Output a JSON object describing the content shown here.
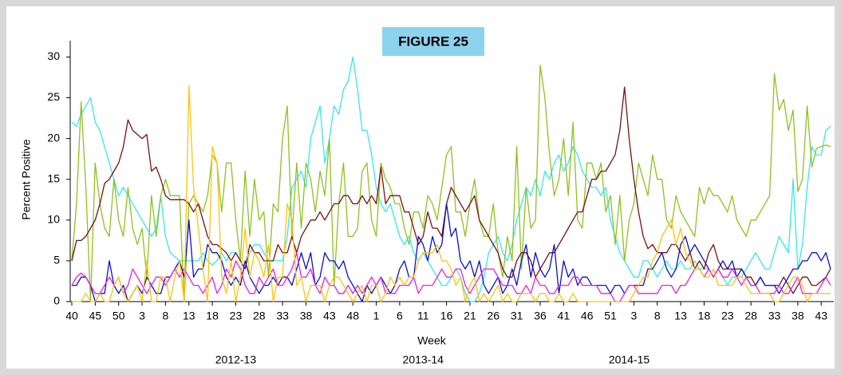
{
  "chart_data": {
    "type": "line",
    "title": "FIGURE 25",
    "x_label": "Week",
    "y_label": "Percent  Positive",
    "season_labels": [
      "2012-13",
      "2013-14",
      "2014-15"
    ],
    "categories": [
      "40",
      null,
      null,
      null,
      null,
      "45",
      null,
      null,
      null,
      null,
      "50",
      null,
      null,
      null,
      null,
      "3",
      null,
      null,
      null,
      null,
      "8",
      null,
      null,
      null,
      null,
      "13",
      null,
      null,
      null,
      null,
      "18",
      null,
      null,
      null,
      null,
      "23",
      null,
      null,
      null,
      null,
      "28",
      null,
      null,
      null,
      null,
      "33",
      null,
      null,
      null,
      null,
      "38",
      null,
      null,
      null,
      null,
      "43",
      null,
      null,
      null,
      null,
      "48",
      null,
      null,
      null,
      null,
      "1",
      null,
      null,
      null,
      null,
      "6",
      null,
      null,
      null,
      null,
      "11",
      null,
      null,
      null,
      null,
      "16",
      null,
      null,
      null,
      null,
      "21",
      null,
      null,
      null,
      null,
      "26",
      null,
      null,
      null,
      null,
      "31",
      null,
      null,
      null,
      null,
      "36",
      null,
      null,
      null,
      null,
      "41",
      null,
      null,
      null,
      null,
      "46",
      null,
      null,
      null,
      null,
      "51",
      null,
      null,
      null,
      null,
      "3",
      null,
      null,
      null,
      null,
      "8",
      null,
      null,
      null,
      null,
      "13",
      null,
      null,
      null,
      null,
      "18",
      null,
      null,
      null,
      null,
      "23",
      null,
      null,
      null,
      null,
      "28",
      null,
      null,
      null,
      null,
      "33",
      null,
      null,
      null,
      null,
      "38",
      null,
      null,
      null,
      null,
      "43",
      null,
      null
    ],
    "series": [
      {
        "color": "#33e8ee",
        "values": [
          22,
          21.5,
          23,
          24,
          25,
          22,
          21,
          19,
          17,
          15,
          13,
          14,
          13,
          12,
          11,
          10,
          9,
          8,
          9,
          13,
          8,
          6,
          5.5,
          5,
          5,
          5,
          5,
          5,
          6,
          5,
          4.5,
          5,
          6,
          5,
          6,
          6,
          5,
          4,
          6,
          7,
          7,
          6,
          5,
          5,
          5,
          5,
          8,
          14,
          15,
          16,
          14,
          20,
          22,
          24,
          17,
          20,
          24,
          23,
          26,
          27,
          30,
          26,
          21,
          21,
          18,
          14,
          12,
          11,
          12,
          10,
          8,
          7,
          8,
          6,
          5,
          6,
          5,
          4,
          3,
          2,
          2,
          3,
          4,
          3,
          1,
          0,
          0,
          1,
          3,
          6,
          7,
          8,
          6,
          5,
          7,
          10,
          12,
          14,
          13,
          15,
          13,
          16,
          15,
          17,
          18,
          16,
          17,
          19,
          18,
          16,
          15,
          14,
          14,
          13,
          14,
          10,
          8,
          6,
          5,
          4,
          3,
          3,
          5,
          5,
          4,
          3,
          4,
          5,
          4,
          4,
          5,
          4,
          4,
          5,
          4,
          4,
          4,
          3,
          4,
          3,
          2,
          3,
          3,
          3,
          4,
          5,
          6,
          5,
          4,
          4,
          6,
          8,
          7,
          6,
          15,
          4,
          7,
          14,
          19,
          18,
          18,
          21,
          21.5
        ]
      },
      {
        "color": "#8dc21f",
        "values": [
          5,
          12,
          24.5,
          14,
          0,
          17,
          12,
          9,
          8,
          15,
          10,
          8,
          14,
          9,
          7,
          9,
          3,
          13,
          8,
          13,
          15,
          13,
          13,
          13,
          0,
          12,
          13,
          12,
          11,
          13,
          18,
          17,
          11,
          17,
          17,
          10,
          5,
          16,
          8,
          15,
          10,
          11,
          3,
          12,
          11,
          20,
          24,
          8,
          17,
          9,
          17,
          15,
          11,
          16,
          13,
          20,
          2,
          12,
          17,
          8,
          8,
          9,
          16,
          17,
          10,
          8,
          17,
          15,
          14,
          12,
          12,
          9,
          7,
          11,
          11,
          9,
          13,
          12,
          10,
          14,
          18,
          19,
          11,
          11,
          8,
          12,
          15,
          10,
          8,
          8,
          12,
          6,
          3,
          8,
          5,
          19,
          4,
          14,
          9,
          10,
          29,
          25,
          18,
          13,
          15,
          20,
          13,
          22,
          10,
          9,
          17,
          17,
          15,
          17,
          11,
          13,
          7,
          13,
          5,
          10,
          12,
          17,
          15,
          13,
          18,
          15,
          15,
          10,
          9,
          13,
          11,
          10,
          9,
          8,
          14,
          12,
          14,
          13,
          13,
          12,
          11,
          13,
          10,
          9,
          8,
          10,
          10,
          11,
          12,
          13,
          28,
          23.5,
          24.8,
          21,
          23.5,
          13.5,
          15,
          24,
          16.5,
          18.8,
          19,
          19.2,
          19
        ]
      },
      {
        "color": "#7a1010",
        "values": [
          5,
          7.5,
          7.5,
          8,
          9,
          10,
          12,
          14.5,
          15,
          16,
          17,
          19,
          22.3,
          21,
          20.5,
          20,
          20.5,
          16,
          16.5,
          15,
          13,
          12.5,
          12.5,
          12.5,
          12.5,
          12,
          11,
          12,
          10,
          8,
          7,
          7,
          6.5,
          6,
          5,
          6,
          5,
          4,
          7,
          6,
          6,
          5,
          5,
          5,
          7,
          6,
          6,
          8,
          6,
          8,
          9,
          10,
          10,
          11,
          10,
          11,
          12,
          12,
          13,
          13,
          12,
          12,
          13,
          12,
          13,
          12,
          16.5,
          12,
          13,
          13,
          13,
          11,
          11,
          9,
          7,
          8,
          11,
          9,
          9,
          8,
          12,
          14,
          13,
          12,
          11,
          12,
          13,
          10,
          9,
          8,
          7,
          6,
          4,
          3,
          3,
          5,
          6,
          6,
          5,
          3,
          4,
          5,
          6,
          6,
          7,
          8,
          9,
          10,
          11,
          11,
          13,
          15,
          15,
          16,
          16,
          17,
          18,
          21,
          26.3,
          20,
          15,
          11,
          8,
          6.5,
          7,
          6,
          6,
          6,
          7,
          7,
          6,
          5,
          6,
          4,
          5,
          4,
          6,
          7,
          5,
          4,
          4,
          4,
          4,
          4,
          3,
          3,
          2,
          3,
          2,
          2,
          2,
          2,
          3,
          2,
          1,
          2,
          3,
          3,
          2,
          2,
          2.5,
          3,
          4
        ]
      },
      {
        "color": "#0a10c8",
        "values": [
          2,
          2,
          3,
          3,
          2,
          0,
          1,
          1,
          5,
          2,
          1,
          2,
          0,
          1,
          2,
          1,
          3,
          2,
          1,
          1,
          3,
          3,
          4,
          5,
          3,
          10,
          3,
          4,
          4,
          7,
          6,
          6,
          5,
          3,
          2,
          3,
          2,
          5,
          3,
          2,
          1,
          2,
          2,
          3,
          2,
          3,
          3,
          2,
          4,
          6,
          4,
          6,
          2,
          3,
          6,
          5,
          5,
          4,
          5,
          3,
          2,
          1,
          0,
          2,
          1,
          2,
          3,
          2,
          1,
          2,
          4,
          5,
          3,
          3,
          8,
          7,
          5,
          8,
          6,
          7,
          12,
          8,
          9,
          5,
          4,
          5,
          3,
          5,
          2,
          1,
          2,
          3,
          1,
          2,
          4,
          2,
          5,
          7,
          3,
          6,
          4,
          3,
          4,
          7,
          1,
          5,
          3,
          4,
          2,
          3,
          3,
          2,
          2,
          2,
          2,
          1,
          2,
          2,
          1,
          2,
          2,
          2,
          2,
          4,
          4,
          5,
          6,
          4,
          3,
          4,
          7,
          8,
          6,
          7,
          6,
          5,
          4,
          3,
          4,
          5,
          4,
          5,
          3,
          4,
          3,
          2,
          2,
          3,
          2,
          2,
          2,
          1,
          2,
          3,
          4,
          4,
          5,
          5,
          6,
          6,
          5,
          6,
          4
        ]
      },
      {
        "color": "#e81ce6",
        "values": [
          2,
          3,
          3.5,
          3,
          2,
          1,
          1,
          2,
          3,
          2,
          3,
          1,
          2,
          4,
          3,
          2,
          1,
          2,
          3,
          3,
          2,
          3,
          4,
          3,
          4,
          3,
          2,
          2,
          1,
          2,
          3,
          1,
          2,
          4,
          3,
          5,
          4,
          2,
          1,
          1,
          3,
          2,
          3,
          4,
          2,
          2,
          3,
          4,
          6,
          3,
          3,
          4,
          2,
          1,
          3,
          2,
          2,
          1,
          1,
          2,
          1,
          2,
          1,
          2,
          3,
          2,
          3,
          1,
          1,
          1,
          2,
          2,
          2,
          3,
          1,
          2,
          2,
          2,
          3,
          4,
          3,
          3,
          4,
          4,
          2,
          1,
          2,
          3,
          4,
          4,
          4,
          3,
          2,
          2,
          2,
          1,
          1,
          2,
          1,
          3,
          2,
          2,
          1,
          1,
          2,
          2,
          2,
          3,
          3,
          2,
          2,
          2,
          2,
          1,
          1,
          1,
          0,
          0,
          1,
          2,
          2,
          1,
          1,
          1,
          1,
          1,
          2,
          2,
          2,
          1,
          2,
          2,
          3,
          4,
          4,
          3,
          4,
          3,
          4,
          3,
          3,
          4,
          3,
          2,
          3,
          2,
          2,
          1,
          1,
          1,
          1,
          2,
          1,
          1,
          2,
          3,
          1,
          1,
          1,
          1,
          2,
          3,
          2
        ]
      },
      {
        "color": "#ffc20e",
        "values": [
          0,
          0,
          0,
          1,
          0,
          0,
          1,
          0,
          0,
          2,
          3,
          1,
          0,
          1,
          2,
          0,
          5,
          0,
          0,
          3,
          3,
          0,
          3,
          5,
          0,
          26.5,
          14,
          9,
          4,
          0,
          19,
          17,
          3,
          1,
          5,
          0,
          3,
          9,
          3,
          6,
          5,
          3,
          7,
          0,
          3,
          3,
          12,
          10,
          2,
          3,
          0,
          2,
          2,
          2,
          0,
          2,
          3,
          3,
          2,
          1,
          0,
          1,
          2,
          0,
          2,
          2,
          0,
          1,
          3,
          2,
          3,
          2,
          3,
          3,
          5,
          6,
          6,
          6,
          7,
          5,
          5,
          4,
          2,
          3,
          0,
          2,
          3,
          0,
          1,
          0,
          1,
          2,
          0,
          1,
          0,
          0,
          1,
          1,
          1,
          0,
          1,
          1,
          0,
          0,
          1,
          0,
          0,
          1,
          0,
          0,
          0,
          0,
          0,
          0,
          0,
          0,
          0,
          0,
          0,
          0,
          1,
          2,
          3,
          3,
          5,
          6,
          8,
          9,
          10,
          7,
          9,
          6,
          5,
          4,
          4,
          3,
          3,
          4,
          2,
          2,
          2,
          2,
          3,
          3,
          2,
          1,
          1,
          1,
          1,
          1,
          0,
          0,
          1,
          2,
          3,
          3,
          2,
          0,
          1,
          1,
          1,
          1,
          1
        ]
      }
    ],
    "ylim": [
      0,
      32
    ],
    "yticks": [
      0,
      5,
      10,
      15,
      20,
      25,
      30
    ],
    "grid": false
  }
}
